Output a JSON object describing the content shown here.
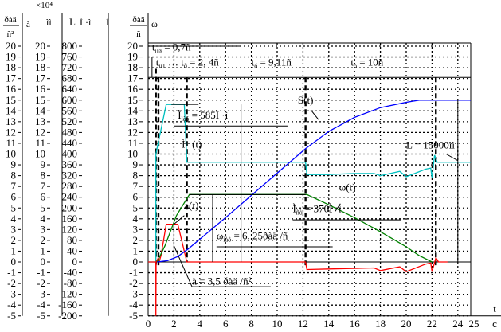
{
  "chart_data": {
    "type": "line",
    "title": "",
    "xlabel": "t",
    "xunit": "c",
    "xlim": [
      0,
      25
    ],
    "ylim": [
      -5,
      20
    ],
    "grid": true,
    "x_ticks": [
      "0",
      "2",
      "4",
      "6",
      "8",
      "10",
      "12",
      "14",
      "16",
      "18",
      "20",
      "22",
      "24",
      "25"
    ],
    "x_tick_values": [
      0,
      2,
      4,
      6,
      8,
      10,
      12,
      14,
      16,
      18,
      20,
      22,
      24,
      25
    ],
    "y_axes": [
      {
        "header_num": "ðàä",
        "header_den": "ñ²",
        "header_label": "à",
        "ticks": [
          "20",
          "19",
          "18",
          "17",
          "16",
          "15",
          "14",
          "13",
          "12",
          "11",
          "10",
          "9",
          "8",
          "7",
          "6",
          "5",
          "4",
          "3",
          "2",
          "1",
          "0",
          "-1",
          "-2",
          "-3",
          "-4",
          "-5"
        ]
      },
      {
        "header_exp": "×10⁴",
        "header_label": "ìì",
        "ticks": [
          "20",
          "19",
          "18",
          "17",
          "16",
          "15",
          "14",
          "13",
          "12",
          "11",
          "10",
          "9",
          "8",
          "7",
          "6",
          "5",
          "4",
          "3",
          "2",
          "1",
          "0",
          "-1",
          "-2",
          "-3",
          "-4",
          "-5"
        ]
      },
      {
        "header_left": "L",
        "header_label": "Ì ·ì",
        "header_right": "Ì",
        "ticks": [
          "800",
          "760",
          "720",
          "680",
          "640",
          "600",
          "560",
          "520",
          "480",
          "440",
          "400",
          "360",
          "320",
          "280",
          "240",
          "200",
          "160",
          "120",
          "80",
          "40",
          "0",
          "-40",
          "-80",
          "-120",
          "-160",
          "-200"
        ]
      },
      {
        "header_num": "ðàä",
        "header_den": "ñ",
        "header_label": "ω",
        "ticks": [
          "20",
          "19",
          "18",
          "17",
          "16",
          "15",
          "14",
          "13",
          "12",
          "11",
          "10",
          "9",
          "8",
          "7",
          "6",
          "5",
          "4",
          "3",
          "2",
          "1",
          "0",
          "-1",
          "-2",
          "-3",
          "-4",
          "-5"
        ]
      }
    ],
    "series": [
      {
        "name": "Ì (t)",
        "color": "#00c0c0",
        "points": [
          [
            0,
            0
          ],
          [
            0.6,
            0
          ],
          [
            0.6,
            10
          ],
          [
            1.4,
            14.6
          ],
          [
            2.8,
            14.6
          ],
          [
            3.0,
            9.25
          ],
          [
            12.2,
            9.25
          ],
          [
            12.3,
            8.1
          ],
          [
            14,
            8.1
          ],
          [
            16,
            8.2
          ],
          [
            17.5,
            8.2
          ],
          [
            18,
            8.0
          ],
          [
            19.5,
            8.4
          ],
          [
            20,
            7.9
          ],
          [
            21.5,
            8.6
          ],
          [
            21.9,
            8.7
          ],
          [
            22.0,
            7.8
          ],
          [
            22.2,
            9.9
          ],
          [
            22.4,
            9.25
          ],
          [
            25,
            9.25
          ]
        ]
      },
      {
        "name": "a(t)",
        "color": "#ff0000",
        "points": [
          [
            0,
            0
          ],
          [
            0.6,
            0
          ],
          [
            0.6,
            -5
          ],
          [
            0.62,
            0
          ],
          [
            0.75,
            0.3
          ],
          [
            0.85,
            0
          ],
          [
            1.0,
            0.6
          ],
          [
            1.4,
            3.5
          ],
          [
            2.3,
            3.5
          ],
          [
            2.6,
            2
          ],
          [
            3.0,
            0
          ],
          [
            12.2,
            0
          ],
          [
            12.3,
            -0.7
          ],
          [
            14,
            -0.65
          ],
          [
            16,
            -0.6
          ],
          [
            17.5,
            -0.55
          ],
          [
            18,
            -0.8
          ],
          [
            19.5,
            -0.45
          ],
          [
            20,
            -0.9
          ],
          [
            21.5,
            -0.2
          ],
          [
            21.9,
            -0.1
          ],
          [
            22.0,
            -0.9
          ],
          [
            22.3,
            0.4
          ],
          [
            22.5,
            0
          ],
          [
            23.2,
            0
          ]
        ]
      },
      {
        "name": "ω(t)",
        "color": "#008000",
        "points": [
          [
            0.7,
            0
          ],
          [
            1.3,
            1.5
          ],
          [
            2.2,
            4.3
          ],
          [
            3.2,
            6.25
          ],
          [
            12.3,
            6.25
          ],
          [
            14,
            5.3
          ],
          [
            16,
            4.1
          ],
          [
            18,
            2.8
          ],
          [
            20,
            1.4
          ],
          [
            21,
            0.6
          ],
          [
            22,
            0
          ]
        ]
      },
      {
        "name": "S(t)",
        "color": "#0000ff",
        "points": [
          [
            0.7,
            0
          ],
          [
            1.5,
            0.12
          ],
          [
            2.3,
            0.5
          ],
          [
            3.1,
            1.2
          ],
          [
            6,
            4.1
          ],
          [
            9,
            7.2
          ],
          [
            12.2,
            10.5
          ],
          [
            14,
            12.1
          ],
          [
            16,
            13.4
          ],
          [
            18,
            14.3
          ],
          [
            20,
            14.8
          ],
          [
            21,
            15
          ],
          [
            22.2,
            15
          ],
          [
            25,
            15
          ]
        ]
      }
    ],
    "vlines_t": [
      0.6,
      0.8,
      3.0,
      12.2,
      22.3
    ],
    "annotations": {
      "i_label": "Ì",
      "i_arg": "(t)",
      "s_label": "S(t)",
      "a_label": "a(t)",
      "w_label": "ω(t)",
      "imax_main": "Ì",
      "imax_sub": "ìàõ",
      "imax_val": "= 585Ì ·ì",
      "ist_main": "Ì",
      "ist_sub": "ñò",
      "ist_val": "= 370Ì ·ì",
      "wmax_main": "ω",
      "wmax_sub": "ìàõ",
      "wmax_val": "= 6, 25ðàä /ñ",
      "a_val": "à = 3,5 ðàä /ñ²",
      "L_val": "L = 15000ìì",
      "tpusk_main": "t",
      "tpusk_sub": "ïïø",
      "tpusk_val": "= 0,7ñ",
      "tp1_main": "t",
      "tp1_sub": "ïï1",
      "tp1_dots": "…",
      "tp_main": "t",
      "tp_sub": "ð",
      "tp_val": "= 2, 4ñ",
      "tu_main": "t",
      "tu_sub": "ó",
      "tu_val": "= 9,11ñ",
      "tt_main": "t",
      "tt_sub": "ò",
      "tt_val": "= 10ñ"
    }
  }
}
